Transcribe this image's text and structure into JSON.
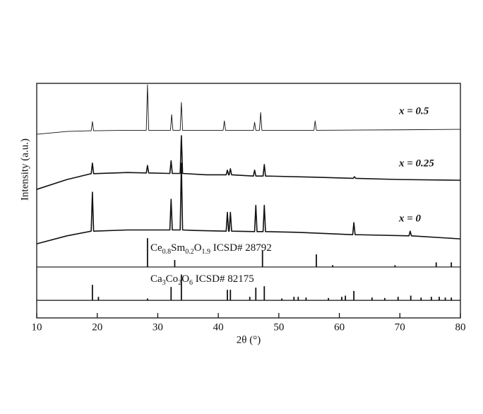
{
  "chart_data": {
    "type": "line",
    "xlabel": "2θ (°)",
    "ylabel": "Intensity (a.u.)",
    "xlim": [
      10,
      80
    ],
    "xticks": [
      10,
      20,
      30,
      40,
      50,
      60,
      70,
      80
    ],
    "ylim": [
      0,
      100
    ],
    "color": "#111111",
    "series": [
      {
        "name": "x = 0.5",
        "x": [
          10,
          15,
          19.0,
          19.2,
          19.4,
          25,
          28.1,
          28.3,
          28.5,
          32.1,
          32.3,
          32.5,
          33.7,
          33.9,
          34.1,
          40.8,
          41.0,
          41.2,
          45.8,
          46.0,
          46.2,
          46.8,
          47.0,
          47.2,
          55.8,
          56.0,
          56.2,
          70,
          80
        ],
        "values": [
          78.3,
          79.5,
          79.8,
          83.7,
          79.8,
          80,
          80,
          99.4,
          80,
          80,
          86.7,
          80,
          80,
          91.9,
          80,
          80,
          84,
          80,
          80,
          83.4,
          80,
          80,
          87.6,
          80,
          80,
          84,
          80,
          80.2,
          80.4
        ]
      },
      {
        "name": "x = 0.25",
        "x": [
          10,
          15,
          19.0,
          19.2,
          19.4,
          25,
          28.1,
          28.3,
          28.5,
          32.0,
          32.2,
          32.4,
          33.7,
          33.9,
          34.1,
          38,
          41.3,
          41.5,
          41.7,
          41.8,
          42.0,
          42.2,
          45.8,
          46.0,
          46.2,
          47.4,
          47.6,
          47.8,
          56,
          62.3,
          62.5,
          62.7,
          70,
          80
        ],
        "values": [
          54.8,
          59,
          61.5,
          66,
          61.5,
          62,
          61.8,
          65,
          61.8,
          61.6,
          67,
          61.6,
          61.6,
          77.7,
          61.6,
          61,
          61,
          63,
          61,
          61,
          63.6,
          61,
          60.5,
          63,
          60.5,
          60.5,
          65.4,
          60.5,
          60,
          59.5,
          60.2,
          59.5,
          59,
          58.7
        ]
      },
      {
        "name": "x = 0",
        "x": [
          10,
          15,
          19.0,
          19.2,
          19.4,
          25,
          32.0,
          32.2,
          32.4,
          33.7,
          33.9,
          34.1,
          36,
          41.3,
          41.5,
          41.7,
          41.8,
          42.0,
          42.2,
          46.0,
          46.2,
          46.4,
          47.4,
          47.6,
          47.8,
          53,
          62.2,
          62.4,
          62.6,
          71.5,
          71.7,
          71.9,
          80
        ],
        "values": [
          31.6,
          35,
          37,
          53.6,
          37,
          37.5,
          37.5,
          50.6,
          37.5,
          37.5,
          66,
          37.5,
          37.3,
          37,
          45,
          37,
          37,
          45,
          37,
          36.8,
          48,
          36.8,
          36.8,
          48,
          36.8,
          36.5,
          35.5,
          40.6,
          35.5,
          35,
          37,
          35,
          33.7
        ]
      }
    ],
    "references": [
      {
        "label_parts": [
          {
            "text": "Ce"
          },
          {
            "text": "0.8",
            "sub": true
          },
          {
            "text": "Sm"
          },
          {
            "text": "0.2",
            "sub": true
          },
          {
            "text": "O"
          },
          {
            "text": "1.9",
            "sub": true
          },
          {
            "text": " ICSD# 28792"
          }
        ],
        "baseline": 21.7,
        "positions": [
          28.3,
          32.8,
          47.3,
          56.2,
          58.9,
          69.2,
          76.0,
          78.5
        ],
        "heights": [
          12.3,
          3,
          7,
          5.4,
          0.8,
          0.8,
          2,
          2
        ]
      },
      {
        "label_parts": [
          {
            "text": "Ca"
          },
          {
            "text": "3",
            "sub": true
          },
          {
            "text": "Co"
          },
          {
            "text": "2",
            "sub": true
          },
          {
            "text": "O"
          },
          {
            "text": "6",
            "sub": true
          },
          {
            "text": " ICSD# 82175"
          }
        ],
        "baseline": 7.5,
        "positions": [
          19.2,
          20.2,
          28.3,
          32.2,
          33.9,
          41.5,
          42.0,
          45.2,
          46.2,
          47.6,
          50.5,
          52.5,
          53.2,
          54.5,
          58.2,
          60.4,
          61.0,
          62.4,
          65.4,
          67.5,
          69.7,
          71.8,
          73.5,
          75.2,
          76.5,
          77.5,
          78.5
        ],
        "heights": [
          6.6,
          1.5,
          0.8,
          5.7,
          11,
          4.5,
          4.5,
          1.5,
          5.4,
          6,
          0.8,
          1.5,
          1.5,
          1.2,
          1,
          1.5,
          2,
          4,
          1.2,
          1,
          1.5,
          2,
          1.2,
          1.5,
          1.5,
          1.2,
          1.2
        ]
      }
    ]
  }
}
